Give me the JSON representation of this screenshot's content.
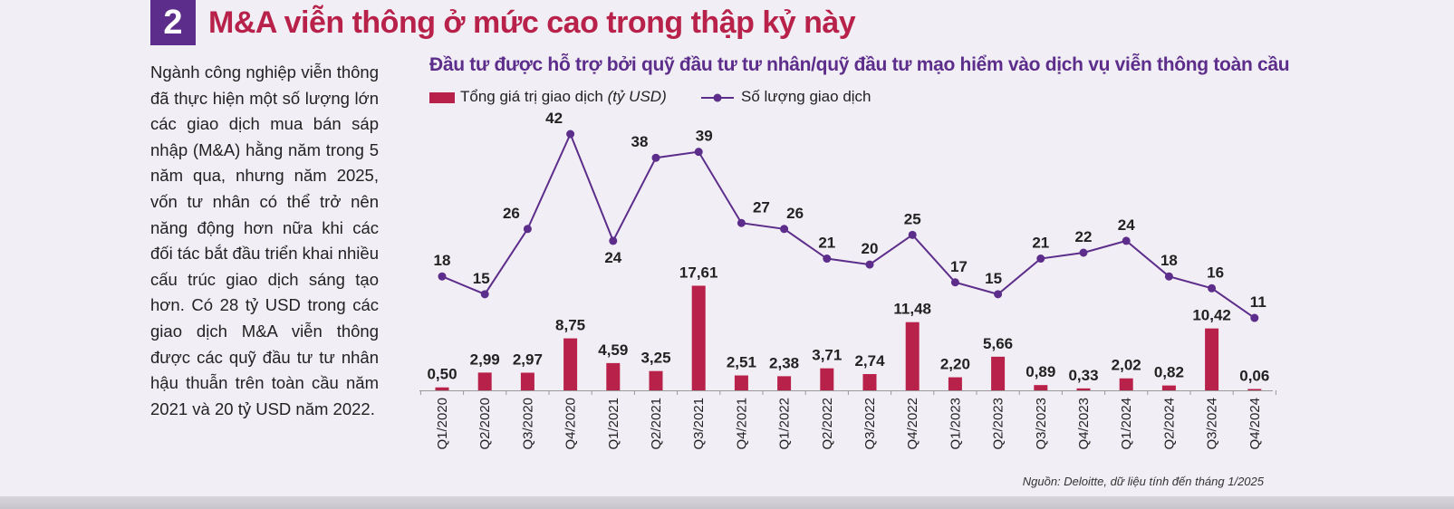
{
  "header": {
    "number": "2",
    "title": "M&A viễn thông ở mức cao trong thập kỷ này"
  },
  "body_text": "Ngành công nghiệp viễn thông đã thực hiện một số lượng lớn các giao dịch mua bán sáp nhập (M&A) hằng năm trong 5 năm qua, nhưng năm 2025, vốn tư nhân có thể trở nên năng động hơn nữa khi các đối tác bắt đầu triển khai nhiều cấu trúc giao dịch sáng tạo hơn. Có 28 tỷ USD trong các giao dịch M&A viễn thông được các quỹ đầu tư tư nhân hậu thuẫn trên toàn cầu năm 2021 và 20 tỷ USD năm 2022.",
  "legend": {
    "bar_label": "Tổng giá trị giao dịch",
    "bar_unit": "(tỷ USD)",
    "line_label": "Số lượng giao dịch"
  },
  "source": "Nguồn: Deloitte, dữ liệu tính đến tháng 1/2025",
  "colors": {
    "bar": "#b8224a",
    "line": "#5c2d8a",
    "title": "#b8224a",
    "accent": "#5c2d8a"
  },
  "chart_data": {
    "type": "bar",
    "title": "Đầu tư được hỗ trợ bởi quỹ đầu tư tư nhân/quỹ đầu tư mạo hiểm vào dịch vụ viễn thông toàn cầu",
    "categories": [
      "Q1/2020",
      "Q2/2020",
      "Q3/2020",
      "Q4/2020",
      "Q1/2021",
      "Q2/2021",
      "Q3/2021",
      "Q4/2021",
      "Q1/2022",
      "Q2/2022",
      "Q3/2022",
      "Q4/2022",
      "Q1/2023",
      "Q2/2023",
      "Q3/2023",
      "Q4/2023",
      "Q1/2024",
      "Q2/2024",
      "Q3/2024",
      "Q4/2024"
    ],
    "series": [
      {
        "name": "Tổng giá trị giao dịch (tỷ USD)",
        "type": "bar",
        "values": [
          0.5,
          2.99,
          2.97,
          8.75,
          4.59,
          3.25,
          17.61,
          2.51,
          2.38,
          3.71,
          2.74,
          11.48,
          2.2,
          5.66,
          0.89,
          0.33,
          2.02,
          0.82,
          10.42,
          0.06
        ],
        "labels": [
          "0,50",
          "2,99",
          "2,97",
          "8,75",
          "4,59",
          "3,25",
          "17,61",
          "2,51",
          "2,38",
          "3,71",
          "2,74",
          "11,48",
          "2,20",
          "5,66",
          "0,89",
          "0,33",
          "2,02",
          "0,82",
          "10,42",
          "0,06"
        ]
      },
      {
        "name": "Số lượng giao dịch",
        "type": "line",
        "values": [
          18,
          15,
          26,
          42,
          24,
          38,
          39,
          27,
          26,
          21,
          20,
          25,
          17,
          15,
          21,
          22,
          24,
          18,
          16,
          11
        ],
        "labels": [
          "18",
          "15",
          "26",
          "42",
          "24",
          "38",
          "39",
          "27",
          "26",
          "21",
          "20",
          "25",
          "17",
          "15",
          "21",
          "22",
          "24",
          "18",
          "16",
          "11"
        ]
      }
    ],
    "xlabel": "",
    "ylabel": "",
    "grid": false,
    "legend": "top-left"
  }
}
